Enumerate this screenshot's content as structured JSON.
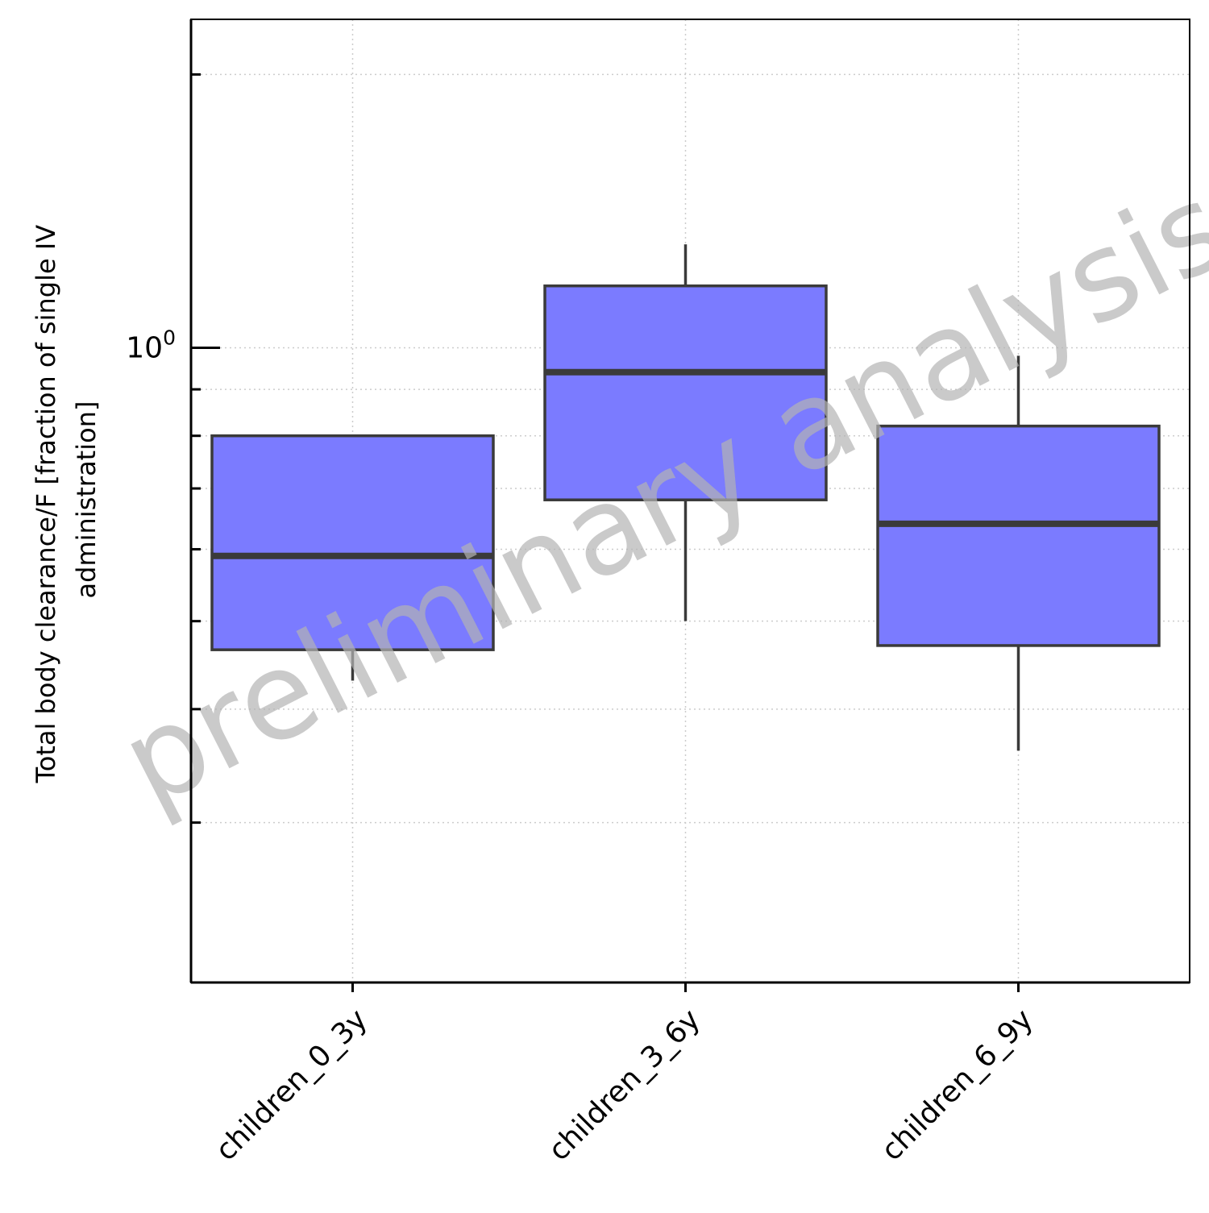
{
  "chart_data": {
    "type": "box",
    "title": "",
    "xlabel": "",
    "ylabel_lines": [
      "Total body clearance/F [fraction of single IV",
      "administration]"
    ],
    "yscale": "log",
    "ylim": [
      0.2,
      2.3
    ],
    "y_tick_labels": [
      {
        "value": 1.0,
        "base": "10",
        "exp": "0"
      }
    ],
    "y_minor_ticks": [
      0.3,
      0.4,
      0.5,
      0.6,
      0.7,
      0.8,
      0.9,
      2.0,
      3.0
    ],
    "grid": true,
    "categories": [
      "children_0_3y",
      "children_3_6y",
      "children_6_9y"
    ],
    "boxes": [
      {
        "category": "children_0_3y",
        "whisker_low": 0.43,
        "q1": 0.465,
        "median": 0.59,
        "q3": 0.8,
        "whisker_high": 0.8
      },
      {
        "category": "children_3_6y",
        "whisker_low": 0.5,
        "q1": 0.68,
        "median": 0.94,
        "q3": 1.17,
        "whisker_high": 1.3
      },
      {
        "category": "children_6_9y",
        "whisker_low": 0.36,
        "q1": 0.47,
        "median": 0.64,
        "q3": 0.82,
        "whisker_high": 0.98
      }
    ],
    "colors": {
      "box_fill": "#7b7bff",
      "box_edge": "#3a3a3a",
      "grid": "#cccccc",
      "axis": "#000000"
    },
    "watermark": "preliminary analysis"
  }
}
